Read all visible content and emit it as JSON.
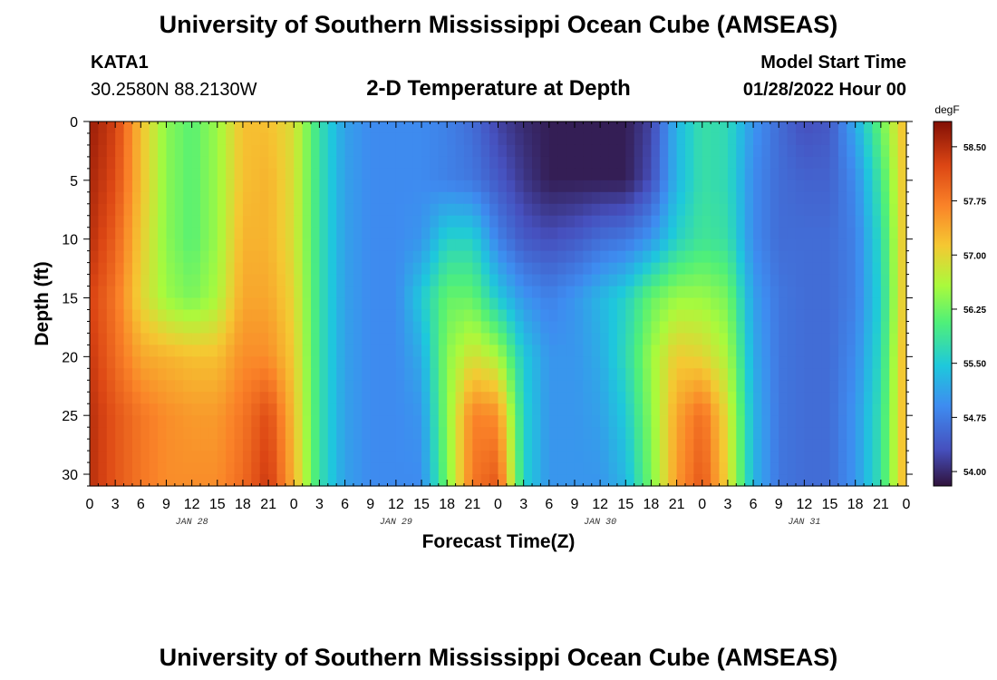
{
  "page": {
    "title": "University of Southern Mississippi Ocean Cube (AMSEAS)",
    "title_repeat": "University of Southern Mississippi Ocean Cube (AMSEAS)",
    "station": "KATA1",
    "coords": "30.2580N  88.2130W",
    "plot_title": "2-D Temperature at Depth",
    "model_label": "Model Start Time",
    "model_time": "01/28/2022 Hour 00"
  },
  "chart_data": {
    "type": "heatmap",
    "title": "2-D Temperature at Depth",
    "xlabel": "Forecast Time(Z)",
    "ylabel": "Depth (ft)",
    "xlim_hours": [
      0,
      96
    ],
    "ylim": [
      0,
      31
    ],
    "y_inverted": true,
    "x_tick_labels": [
      "0",
      "3",
      "6",
      "9",
      "12",
      "15",
      "18",
      "21",
      "0",
      "3",
      "6",
      "9",
      "12",
      "15",
      "18",
      "21",
      "0",
      "3",
      "6",
      "9",
      "12",
      "15",
      "18",
      "21",
      "0",
      "3",
      "6",
      "9",
      "12",
      "15",
      "18",
      "21",
      "0"
    ],
    "x_day_labels": [
      {
        "label": "JAN 28",
        "hour": 12
      },
      {
        "label": "JAN 29",
        "hour": 36
      },
      {
        "label": "JAN 30",
        "hour": 60
      },
      {
        "label": "JAN 31",
        "hour": 84
      }
    ],
    "y_tick_labels": [
      "0",
      "5",
      "10",
      "15",
      "20",
      "25",
      "30"
    ],
    "y_ticks": [
      0,
      5,
      10,
      15,
      20,
      25,
      30
    ],
    "colorbar": {
      "unit": "degF",
      "range": [
        53.8,
        58.85
      ],
      "tick_values": [
        58.5,
        57.75,
        57.0,
        56.25,
        55.5,
        54.75,
        54.0
      ],
      "tick_labels": [
        "58.50",
        "57.75",
        "57.00",
        "56.25",
        "55.50",
        "54.75",
        "54.00"
      ]
    },
    "depths_ft": [
      0,
      5,
      10,
      15,
      20,
      25,
      31
    ],
    "times_hours": [
      0,
      3,
      6,
      9,
      12,
      15,
      18,
      21,
      24,
      27,
      30,
      33,
      36,
      39,
      42,
      45,
      48,
      51,
      54,
      57,
      60,
      63,
      66,
      69,
      72,
      75,
      78,
      81,
      84,
      87,
      90,
      93,
      96
    ],
    "temperature_degF": [
      [
        58.7,
        58.3,
        57.2,
        56.4,
        56.1,
        56.5,
        57.2,
        57.2,
        56.9,
        55.8,
        55.1,
        54.9,
        54.9,
        54.9,
        54.8,
        54.6,
        54.2,
        54.0,
        53.9,
        53.9,
        53.9,
        53.9,
        54.2,
        55.3,
        55.8,
        55.7,
        55.0,
        54.6,
        54.3,
        54.4,
        55.2,
        56.2,
        57.3
      ],
      [
        58.6,
        58.2,
        57.2,
        56.4,
        56.1,
        56.5,
        57.2,
        57.3,
        56.9,
        55.8,
        55.1,
        54.9,
        54.9,
        54.9,
        54.8,
        54.7,
        54.4,
        54.1,
        53.9,
        53.9,
        53.9,
        53.9,
        54.3,
        55.3,
        55.8,
        55.7,
        54.9,
        54.6,
        54.5,
        54.5,
        54.9,
        55.9,
        57.3
      ],
      [
        58.5,
        58.0,
        57.1,
        56.4,
        56.1,
        56.5,
        57.3,
        57.3,
        56.9,
        55.8,
        55.1,
        54.9,
        54.9,
        55.0,
        55.6,
        55.6,
        54.8,
        54.4,
        54.3,
        54.4,
        54.6,
        54.7,
        55.0,
        55.6,
        55.9,
        55.8,
        54.9,
        54.6,
        54.6,
        54.6,
        54.8,
        55.7,
        57.3
      ],
      [
        58.3,
        57.8,
        57.0,
        56.5,
        56.3,
        56.6,
        57.4,
        57.4,
        57.0,
        55.8,
        55.1,
        54.9,
        54.9,
        55.5,
        56.2,
        56.2,
        55.5,
        55.0,
        54.8,
        55.0,
        55.3,
        55.6,
        56.2,
        56.5,
        56.5,
        56.3,
        55.1,
        54.7,
        54.6,
        54.6,
        54.8,
        55.6,
        57.3
      ],
      [
        58.4,
        57.9,
        57.4,
        57.3,
        57.2,
        57.2,
        57.6,
        57.6,
        57.1,
        55.8,
        55.1,
        54.9,
        54.9,
        55.2,
        56.4,
        56.9,
        56.6,
        55.5,
        55.0,
        55.0,
        55.2,
        55.7,
        56.5,
        57.1,
        57.0,
        56.6,
        55.2,
        54.7,
        54.6,
        54.6,
        54.9,
        55.7,
        57.4
      ],
      [
        58.5,
        58.1,
        57.8,
        57.6,
        57.5,
        57.5,
        57.8,
        58.2,
        57.2,
        55.8,
        55.1,
        54.9,
        54.9,
        55.0,
        56.4,
        57.7,
        57.6,
        55.6,
        55.0,
        55.0,
        55.1,
        55.5,
        56.4,
        57.4,
        57.9,
        56.9,
        55.3,
        54.7,
        54.6,
        54.6,
        55.0,
        55.8,
        57.4
      ],
      [
        58.5,
        58.1,
        57.8,
        57.6,
        57.6,
        57.6,
        57.9,
        58.4,
        57.3,
        55.8,
        55.1,
        54.9,
        54.9,
        54.9,
        56.3,
        57.8,
        58.1,
        55.6,
        55.0,
        55.0,
        55.0,
        55.3,
        56.3,
        57.5,
        58.1,
        57.0,
        55.3,
        54.7,
        54.6,
        54.6,
        55.0,
        55.8,
        57.4
      ]
    ]
  }
}
